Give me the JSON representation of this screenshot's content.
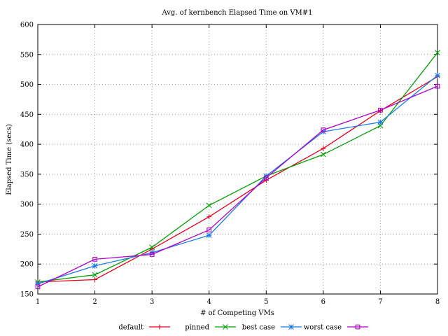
{
  "chart_data": {
    "type": "line",
    "title": "Avg. of kernbench Elapsed Time on VM#1",
    "xlabel": "# of Competing VMs",
    "ylabel": "Elapsed Time (secs)",
    "x": [
      1,
      2,
      3,
      4,
      5,
      6,
      7,
      8
    ],
    "xticks": [
      "1",
      "2",
      "3",
      "4",
      "5",
      "6",
      "7",
      "8"
    ],
    "xlim": [
      1,
      8
    ],
    "ylim": [
      150,
      600
    ],
    "yticks": [
      "150",
      "200",
      "250",
      "300",
      "350",
      "400",
      "450",
      "500",
      "550",
      "600"
    ],
    "grid": true,
    "legend_position": "bottom",
    "series": [
      {
        "name": "default",
        "color": "#e8001c",
        "marker": "plus",
        "values": [
          170,
          174,
          225,
          279,
          340,
          393,
          456,
          513
        ]
      },
      {
        "name": "pinned",
        "color": "#00a000",
        "marker": "cross",
        "values": [
          170,
          182,
          228,
          298,
          347,
          383,
          431,
          553
        ]
      },
      {
        "name": "best case",
        "color": "#1a7ae6",
        "marker": "asterisk",
        "values": [
          167,
          197,
          219,
          248,
          347,
          421,
          437,
          515
        ]
      },
      {
        "name": "worst case",
        "color": "#b000c8",
        "marker": "square",
        "values": [
          162,
          208,
          216,
          257,
          344,
          424,
          457,
          497
        ]
      }
    ]
  }
}
